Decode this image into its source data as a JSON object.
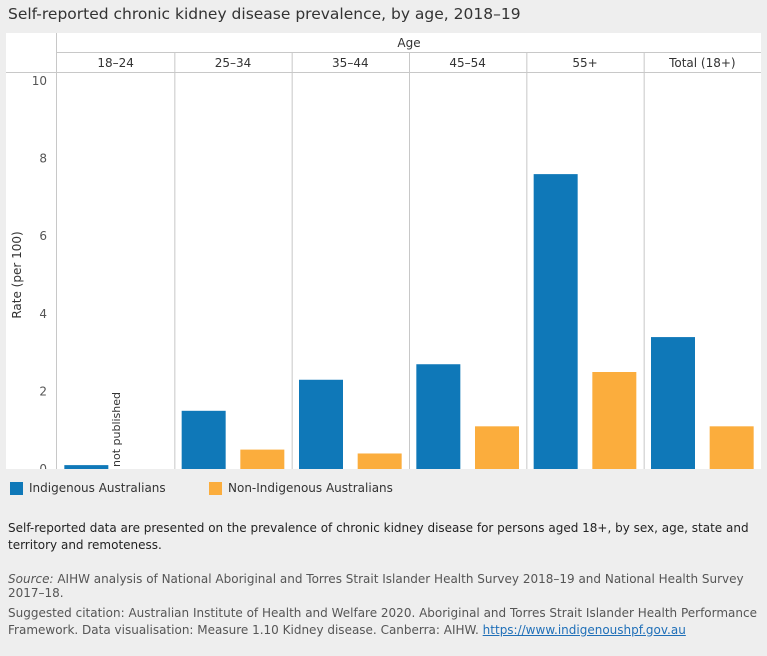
{
  "title": "Self-reported chronic kidney disease prevalence, by age, 2018–19",
  "colors": {
    "indigenous": "#0f78b8",
    "non_indigenous": "#fbad3d",
    "gridline": "#d0d0d0",
    "divider": "#c8c8c8"
  },
  "legend": {
    "indigenous": "Indigenous Australians",
    "non_indigenous": "Non-Indigenous Australians"
  },
  "note": "Self-reported data are presented on the prevalence of chronic kidney disease for persons aged 18+, by sex, age, state and territory and remoteness.",
  "source": {
    "label": "Source:",
    "text": " AIHW analysis of National Aboriginal and Torres Strait Islander Health Survey 2018–19 and National Health Survey 2017–18."
  },
  "citation": {
    "text": "Suggested citation: Australian Institute of Health and Welfare 2020. Aboriginal and Torres Strait Islander Health Performance Framework. Data visualisation: Measure 1.10 Kidney disease. Canberra: AIHW.",
    "link": "https://www.indigenoushpf.gov.au"
  },
  "chart_data": {
    "type": "bar",
    "title": "Self-reported chronic kidney disease prevalence, by age, 2018–19",
    "xlabel": "Age",
    "ylabel": "Rate (per 100)",
    "categories": [
      "18–24",
      "25–34",
      "35–44",
      "45–54",
      "55+",
      "Total (18+)"
    ],
    "series": [
      {
        "name": "Indigenous Australians",
        "values": [
          0.1,
          1.5,
          2.3,
          2.7,
          7.6,
          3.4
        ]
      },
      {
        "name": "Non-Indigenous Australians",
        "values": [
          null,
          0.5,
          0.4,
          1.1,
          2.5,
          1.1
        ]
      }
    ],
    "annotations": [
      {
        "category": "18–24",
        "series": "Non-Indigenous Australians",
        "text": "not published"
      }
    ],
    "ylim": [
      0,
      10
    ],
    "yticks": [
      0,
      2,
      4,
      6,
      8,
      10
    ],
    "grid": false,
    "legend_position": "bottom-left"
  }
}
